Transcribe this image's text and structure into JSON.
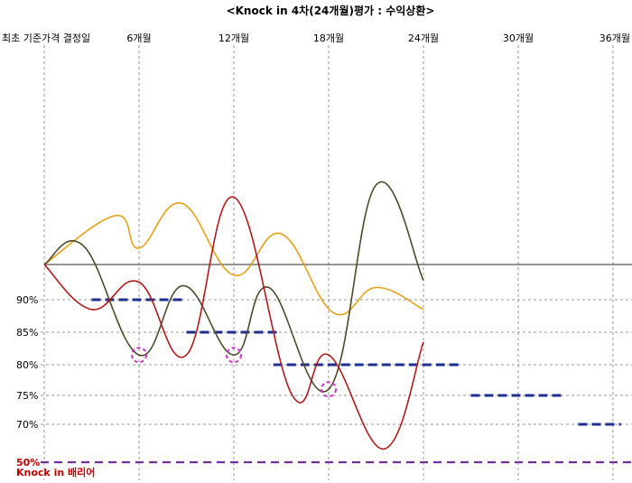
{
  "chart_data": {
    "type": "line",
    "title": "<Knock in 4차(24개월)평가 : 수익상환>",
    "x_ticks": [
      {
        "month": 0,
        "label": "최초 기준가격 결정일"
      },
      {
        "month": 6,
        "label": "6개월"
      },
      {
        "month": 12,
        "label": "12개월"
      },
      {
        "month": 18,
        "label": "18개월"
      },
      {
        "month": 24,
        "label": "24개월"
      },
      {
        "month": 30,
        "label": "30개월"
      },
      {
        "month": 36,
        "label": "36개월"
      }
    ],
    "y_ticks": [
      {
        "value": 90,
        "label": "90%"
      },
      {
        "value": 85,
        "label": "85%"
      },
      {
        "value": 80,
        "label": "80%"
      },
      {
        "value": 75,
        "label": "75%"
      },
      {
        "value": 70,
        "label": "70%"
      },
      {
        "value": 50,
        "label": "50%"
      }
    ],
    "reference_level": 100,
    "barrier": {
      "value": 50,
      "label": "Knock in 배리어",
      "color": "#7030A0",
      "label_color": "#C00000"
    },
    "redemption_levels": [
      {
        "from": 3,
        "to": 9,
        "value": 90
      },
      {
        "from": 9,
        "to": 15,
        "value": 85
      },
      {
        "from": 14.5,
        "to": 26.5,
        "value": 80
      },
      {
        "from": 27,
        "to": 33,
        "value": 75
      },
      {
        "from": 33.8,
        "to": 36.5,
        "value": 70
      }
    ],
    "evaluation_markers": [
      {
        "month": 6,
        "value": 81.5
      },
      {
        "month": 12,
        "value": 81.5
      },
      {
        "month": 18,
        "value": 76
      }
    ],
    "series": [
      {
        "color": "#E6A117",
        "points": [
          [
            0,
            100
          ],
          [
            4.5,
            112
          ],
          [
            6,
            104
          ],
          [
            8.7,
            115
          ],
          [
            12,
            97
          ],
          [
            15,
            107.5
          ],
          [
            18.3,
            88
          ],
          [
            21,
            93.5
          ],
          [
            24,
            88.5
          ]
        ]
      },
      {
        "color": "#4D4A2A",
        "points": [
          [
            0,
            100
          ],
          [
            2.5,
            104.5
          ],
          [
            6,
            81.5
          ],
          [
            8.8,
            94
          ],
          [
            12,
            81.5
          ],
          [
            14.2,
            93.5
          ],
          [
            18,
            76
          ],
          [
            21,
            119.5
          ],
          [
            24,
            95.5
          ]
        ]
      },
      {
        "color": "#B31B1B",
        "points": [
          [
            0,
            100
          ],
          [
            3,
            88.5
          ],
          [
            6,
            95
          ],
          [
            9,
            81.5
          ],
          [
            12,
            116.5
          ],
          [
            15.7,
            75
          ],
          [
            18,
            81.5
          ],
          [
            21.5,
            57
          ],
          [
            24,
            83.5
          ]
        ]
      }
    ],
    "colors": {
      "baseline": "#555555",
      "grid": "#999999",
      "redemption": "#1F2F8F",
      "marker": "#CC33CC"
    }
  }
}
